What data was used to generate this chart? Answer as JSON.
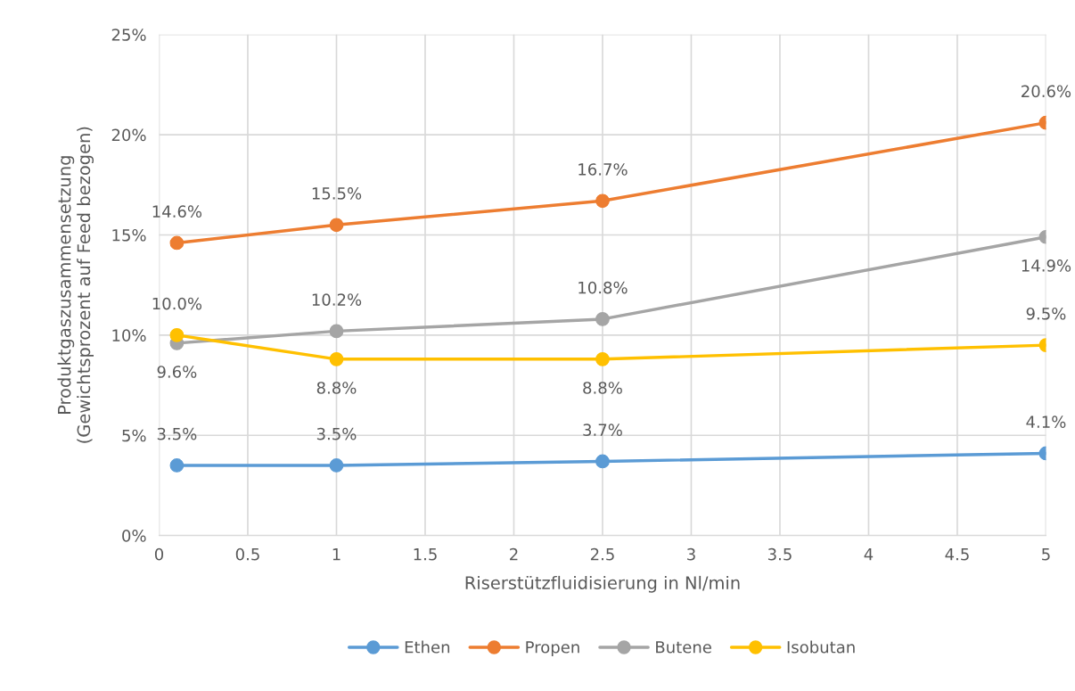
{
  "chart_data": {
    "type": "line",
    "xlabel": "Riserstützfluidisierung in Nl/min",
    "ylabel": "Produktgaszusammensetzung\n(Gewichtsprozent auf Feed bezogen)",
    "x": [
      0.1,
      1,
      2.5,
      5
    ],
    "series": [
      {
        "name": "Ethen",
        "color": "#5b9bd5",
        "values": [
          3.5,
          3.5,
          3.7,
          4.1
        ],
        "value_labels": [
          "3.5%",
          "3.5%",
          "3.7%",
          "4.1%"
        ]
      },
      {
        "name": "Propen",
        "color": "#ed7d31",
        "values": [
          14.6,
          15.5,
          16.7,
          20.6
        ],
        "value_labels": [
          "14.6%",
          "15.5%",
          "16.7%",
          "20.6%"
        ]
      },
      {
        "name": "Butene",
        "color": "#a5a5a5",
        "values": [
          9.6,
          10.2,
          10.8,
          14.9
        ],
        "value_labels": [
          "9.6%",
          "10.2%",
          "10.8%",
          "14.9%"
        ]
      },
      {
        "name": "Isobutan",
        "color": "#ffc000",
        "values": [
          10.0,
          8.8,
          8.8,
          9.5
        ],
        "value_labels": [
          "10.0%",
          "8.8%",
          "8.8%",
          "9.5%"
        ]
      }
    ],
    "xlim": [
      0,
      5
    ],
    "xticks": [
      0,
      0.5,
      1,
      1.5,
      2,
      2.5,
      3,
      3.5,
      4,
      4.5,
      5
    ],
    "ylim": [
      0,
      25
    ],
    "yticks": [
      {
        "value": 0,
        "label": "0%"
      },
      {
        "value": 5,
        "label": "5%"
      },
      {
        "value": 10,
        "label": "10%"
      },
      {
        "value": 15,
        "label": "15%"
      },
      {
        "value": 20,
        "label": "20%"
      },
      {
        "value": 25,
        "label": "25%"
      }
    ],
    "grid": true,
    "legend": "bottom",
    "marker": "circle",
    "line_style": "solid"
  }
}
